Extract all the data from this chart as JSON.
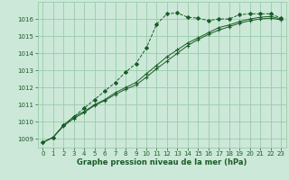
{
  "background_color": "#cce8d8",
  "grid_color": "#99ccaa",
  "line_color": "#1a5c28",
  "xlabel": "Graphe pression niveau de la mer (hPa)",
  "xlim": [
    -0.5,
    23.5
  ],
  "ylim": [
    1008.5,
    1017.0
  ],
  "yticks": [
    1009,
    1010,
    1011,
    1012,
    1013,
    1014,
    1015,
    1016
  ],
  "xticks": [
    0,
    1,
    2,
    3,
    4,
    5,
    6,
    7,
    8,
    9,
    10,
    11,
    12,
    13,
    14,
    15,
    16,
    17,
    18,
    19,
    20,
    21,
    22,
    23
  ],
  "series": [
    {
      "y": [
        1008.8,
        1009.1,
        1009.8,
        1010.3,
        1010.8,
        1011.3,
        1011.8,
        1012.3,
        1012.9,
        1013.4,
        1014.3,
        1015.7,
        1016.3,
        1016.35,
        1016.1,
        1016.05,
        1015.9,
        1016.0,
        1016.0,
        1016.25,
        1016.3,
        1016.3,
        1016.3,
        1016.05
      ],
      "linestyle": "--",
      "linewidth": 0.7,
      "marker": "D",
      "markersize": 2.0
    },
    {
      "y": [
        1008.8,
        1009.1,
        1009.8,
        1010.3,
        1010.6,
        1011.0,
        1011.3,
        1011.7,
        1012.0,
        1012.3,
        1012.8,
        1013.3,
        1013.8,
        1014.2,
        1014.6,
        1014.9,
        1015.2,
        1015.5,
        1015.65,
        1015.85,
        1016.0,
        1016.1,
        1016.15,
        1016.0
      ],
      "linestyle": "-",
      "linewidth": 0.7,
      "marker": "+",
      "markersize": 3.5
    },
    {
      "y": [
        1008.8,
        1009.1,
        1009.75,
        1010.2,
        1010.55,
        1010.95,
        1011.25,
        1011.6,
        1011.9,
        1012.15,
        1012.6,
        1013.1,
        1013.55,
        1014.0,
        1014.45,
        1014.8,
        1015.1,
        1015.35,
        1015.55,
        1015.75,
        1015.9,
        1016.0,
        1016.05,
        1015.95
      ],
      "linestyle": "-",
      "linewidth": 0.7,
      "marker": "+",
      "markersize": 3.5
    }
  ]
}
